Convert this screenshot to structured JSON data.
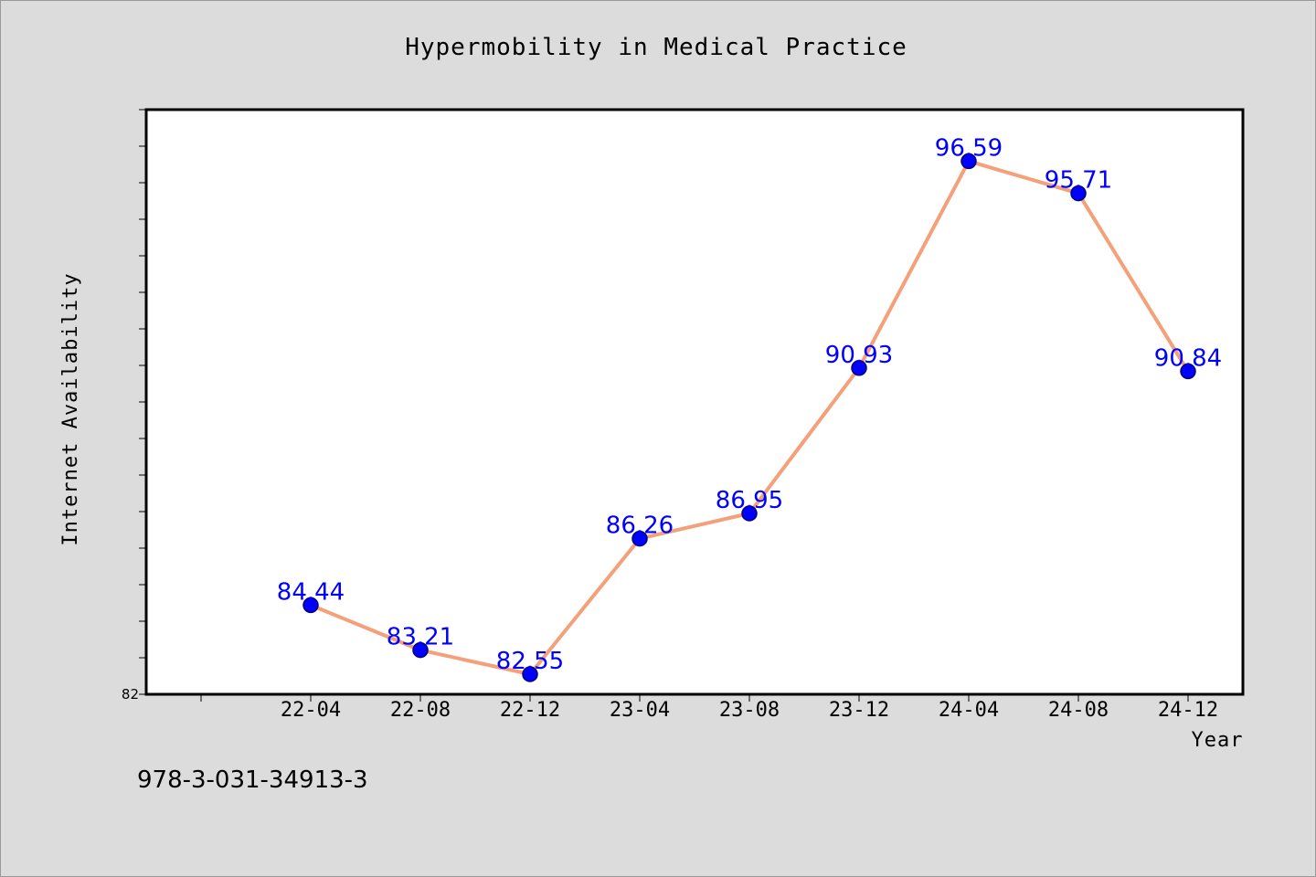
{
  "chart_data": {
    "type": "line",
    "title": "Hypermobility in Medical Practice",
    "xlabel": "Year",
    "ylabel": "Internet Availability",
    "categories": [
      "22-04",
      "22-08",
      "22-12",
      "23-04",
      "23-08",
      "23-12",
      "24-04",
      "24-08",
      "24-12"
    ],
    "series": [
      {
        "values": [
          84.44,
          83.21,
          82.55,
          86.26,
          86.95,
          90.93,
          96.59,
          95.71,
          90.84
        ],
        "line_color": "#f4a07a",
        "marker_color": "#0000ff"
      }
    ],
    "data_labels": [
      "84.44",
      "83.21",
      "82.55",
      "86.26",
      "86.95",
      "90.93",
      "96.59",
      "95.71",
      "90.84"
    ],
    "ylim": [
      82,
      98
    ],
    "yticks_labeled": [
      "82"
    ],
    "grid": false,
    "data_label_color": "#0000ff"
  },
  "footer": {
    "isbn": "978-3-031-34913-3"
  }
}
